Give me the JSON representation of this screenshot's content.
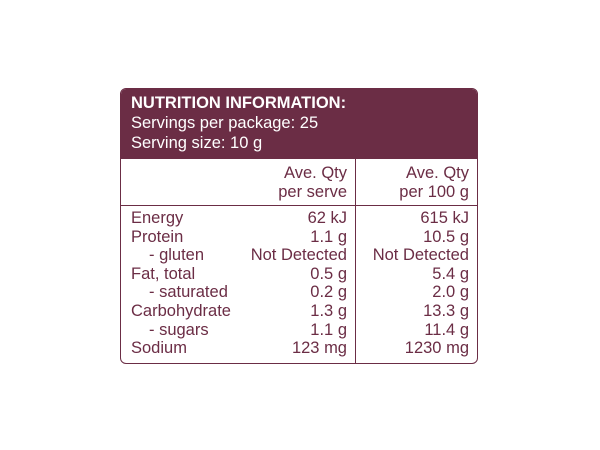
{
  "header": {
    "title": "NUTRITION INFORMATION:",
    "lines": [
      "Servings per package: 25",
      "Serving size: 10 g"
    ]
  },
  "table": {
    "columns": [
      [
        "Ave. Qty",
        "per serve"
      ],
      [
        "Ave. Qty",
        "per 100 g"
      ]
    ],
    "rows": [
      [
        "Energy",
        "62 kJ",
        "615 kJ"
      ],
      [
        "Protein",
        "1.1 g",
        "10.5 g"
      ],
      [
        "- gluten",
        "Not Detected",
        "Not Detected"
      ],
      [
        "Fat, total",
        "0.5 g",
        "5.4 g"
      ],
      [
        "- saturated",
        "0.2 g",
        "2.0 g"
      ],
      [
        "Carbohydrate",
        "1.3 g",
        "13.3 g"
      ],
      [
        "- sugars",
        "1.1 g",
        "11.4 g"
      ],
      [
        "Sodium",
        "123 mg",
        "1230 mg"
      ]
    ]
  }
}
